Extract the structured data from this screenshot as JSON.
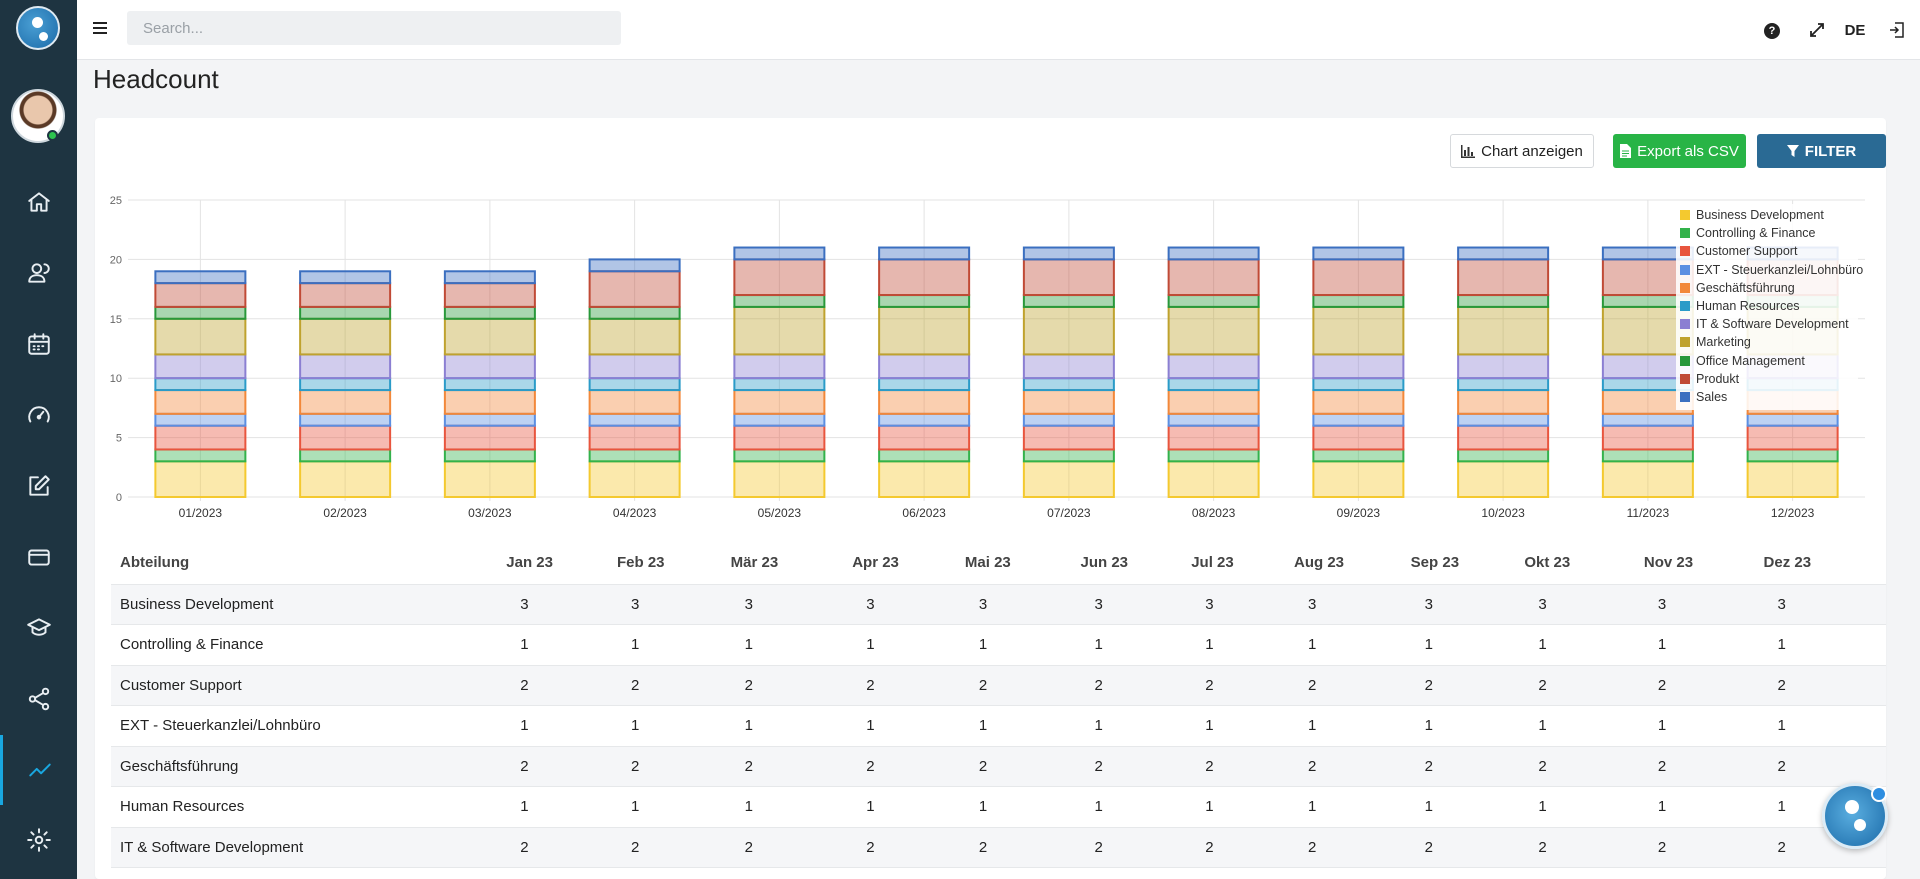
{
  "search": {
    "placeholder": "Search..."
  },
  "topbar": {
    "lang": "DE",
    "help_glyph": "?"
  },
  "page": {
    "title": "Headcount"
  },
  "buttons": {
    "chart": "Chart anzeigen",
    "export": "Export als CSV",
    "filter": "FILTER"
  },
  "colors": {
    "sidebar_bg": "#1e3441",
    "accent": "#19a7e0",
    "export_green": "#28b446",
    "filter_blue": "#2a6a94"
  },
  "sidebar": {
    "items": [
      {
        "name": "home-icon"
      },
      {
        "name": "users-icon"
      },
      {
        "name": "calendar-icon"
      },
      {
        "name": "dashboard-icon"
      },
      {
        "name": "edit-icon"
      },
      {
        "name": "card-icon"
      },
      {
        "name": "education-icon"
      },
      {
        "name": "share-icon"
      },
      {
        "name": "chart-line-icon",
        "active": true
      },
      {
        "name": "gear-icon"
      }
    ]
  },
  "chart_data": {
    "type": "bar",
    "stacked": true,
    "categories": [
      "01/2023",
      "02/2023",
      "03/2023",
      "04/2023",
      "05/2023",
      "06/2023",
      "07/2023",
      "08/2023",
      "09/2023",
      "10/2023",
      "11/2023",
      "12/2023"
    ],
    "ylim": [
      0,
      25
    ],
    "yticks": [
      0,
      5,
      10,
      15,
      20,
      25
    ],
    "grid": true,
    "legend_position": "top-right",
    "series": [
      {
        "name": "Business Development",
        "color": "#f4c92f",
        "values": [
          3,
          3,
          3,
          3,
          3,
          3,
          3,
          3,
          3,
          3,
          3,
          3
        ]
      },
      {
        "name": "Controlling & Finance",
        "color": "#33b24b",
        "values": [
          1,
          1,
          1,
          1,
          1,
          1,
          1,
          1,
          1,
          1,
          1,
          1
        ]
      },
      {
        "name": "Customer Support",
        "color": "#e8553e",
        "values": [
          2,
          2,
          2,
          2,
          2,
          2,
          2,
          2,
          2,
          2,
          2,
          2
        ]
      },
      {
        "name": "EXT - Steuerkanzlei/Lohnbüro",
        "color": "#5b8fe2",
        "values": [
          1,
          1,
          1,
          1,
          1,
          1,
          1,
          1,
          1,
          1,
          1,
          1
        ]
      },
      {
        "name": "Geschäftsführung",
        "color": "#f2883a",
        "values": [
          2,
          2,
          2,
          2,
          2,
          2,
          2,
          2,
          2,
          2,
          2,
          2
        ]
      },
      {
        "name": "Human Resources",
        "color": "#2a9bc8",
        "values": [
          1,
          1,
          1,
          1,
          1,
          1,
          1,
          1,
          1,
          1,
          1,
          1
        ]
      },
      {
        "name": "IT & Software Development",
        "color": "#8b7fd2",
        "values": [
          2,
          2,
          2,
          2,
          2,
          2,
          2,
          2,
          2,
          2,
          2,
          2
        ]
      },
      {
        "name": "Marketing",
        "color": "#bfa22e",
        "values": [
          3,
          3,
          3,
          3,
          4,
          4,
          4,
          4,
          4,
          4,
          4,
          4
        ]
      },
      {
        "name": "Office Management",
        "color": "#28983a",
        "values": [
          1,
          1,
          1,
          1,
          1,
          1,
          1,
          1,
          1,
          1,
          1,
          1
        ]
      },
      {
        "name": "Produkt",
        "color": "#c04a36",
        "values": [
          2,
          2,
          2,
          3,
          3,
          3,
          3,
          3,
          3,
          3,
          3,
          3
        ]
      },
      {
        "name": "Sales",
        "color": "#3b6fc0",
        "values": [
          1,
          1,
          1,
          1,
          1,
          1,
          1,
          1,
          1,
          1,
          1,
          1
        ]
      }
    ]
  },
  "table": {
    "headers": [
      "Abteilung",
      "Jan 23",
      "Feb 23",
      "Mär 23",
      "Apr 23",
      "Mai 23",
      "Jun 23",
      "Jul 23",
      "Aug 23",
      "Sep 23",
      "Okt 23",
      "Nov 23",
      "Dez 23"
    ],
    "rows": [
      {
        "label": "Business Development",
        "values": [
          "3",
          "3",
          "3",
          "3",
          "3",
          "3",
          "3",
          "3",
          "3",
          "3",
          "3",
          "3"
        ]
      },
      {
        "label": "Controlling & Finance",
        "values": [
          "1",
          "1",
          "1",
          "1",
          "1",
          "1",
          "1",
          "1",
          "1",
          "1",
          "1",
          "1"
        ]
      },
      {
        "label": "Customer Support",
        "values": [
          "2",
          "2",
          "2",
          "2",
          "2",
          "2",
          "2",
          "2",
          "2",
          "2",
          "2",
          "2"
        ]
      },
      {
        "label": "EXT - Steuerkanzlei/Lohnbüro",
        "values": [
          "1",
          "1",
          "1",
          "1",
          "1",
          "1",
          "1",
          "1",
          "1",
          "1",
          "1",
          "1"
        ]
      },
      {
        "label": "Geschäftsführung",
        "values": [
          "2",
          "2",
          "2",
          "2",
          "2",
          "2",
          "2",
          "2",
          "2",
          "2",
          "2",
          "2"
        ]
      },
      {
        "label": "Human Resources",
        "values": [
          "1",
          "1",
          "1",
          "1",
          "1",
          "1",
          "1",
          "1",
          "1",
          "1",
          "1",
          "1"
        ]
      },
      {
        "label": "IT & Software Development",
        "values": [
          "2",
          "2",
          "2",
          "2",
          "2",
          "2",
          "2",
          "2",
          "2",
          "2",
          "2",
          "2"
        ]
      }
    ]
  }
}
